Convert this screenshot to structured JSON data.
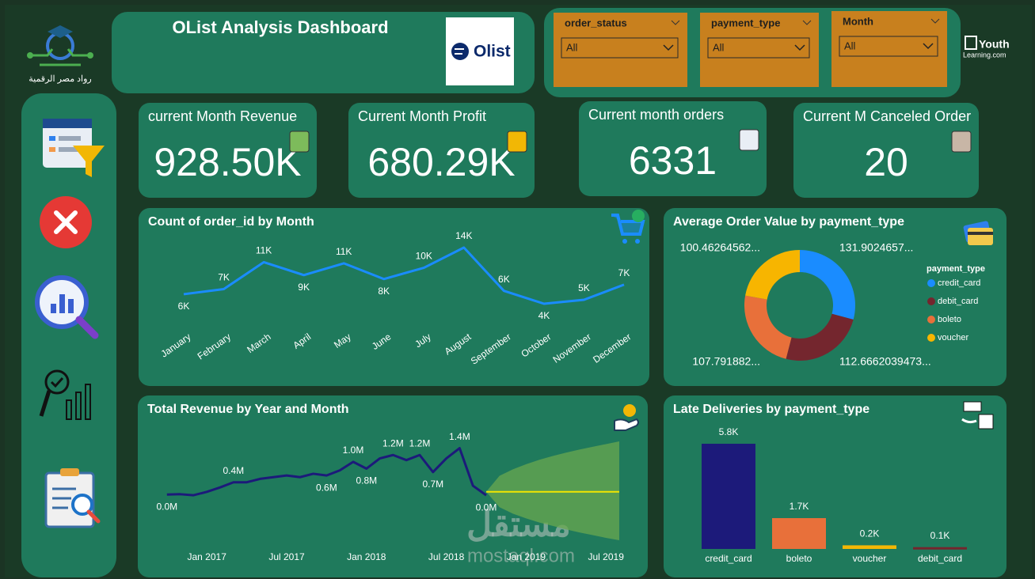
{
  "header": {
    "title": "OList Analysis Dashboard",
    "brand": "Olist",
    "left_logo_caption": "رواد مصر الرقمية",
    "right_logo": [
      "Youth",
      "Learning.com"
    ]
  },
  "filters": [
    {
      "label": "order_status",
      "value": "All"
    },
    {
      "label": "payment_type",
      "value": "All"
    },
    {
      "label": "Month",
      "value": "All"
    }
  ],
  "kpis": [
    {
      "label": "current Month Revenue",
      "value": "928.50K"
    },
    {
      "label": "Current Month Profit",
      "value": "680.29K"
    },
    {
      "label": "Current month orders",
      "value": "6331"
    },
    {
      "label": "Current M Canceled Order",
      "value": "20"
    }
  ],
  "watermark": [
    "مستقل",
    "mostaql.com"
  ],
  "chart_data": [
    {
      "type": "line",
      "title": "Count of order_id by Month",
      "categories": [
        "January",
        "February",
        "March",
        "April",
        "May",
        "June",
        "July",
        "August",
        "September",
        "October",
        "November",
        "December"
      ],
      "values": [
        5700,
        6600,
        11400,
        9100,
        11200,
        8400,
        10400,
        14000,
        6300,
        4000,
        4700,
        7400
      ],
      "value_labels": [
        "6K",
        "7K",
        "11K",
        "9K",
        "11K",
        "8K",
        "10K",
        "14K",
        "6K",
        "4K",
        "5K",
        "7K"
      ],
      "color": "#1a8cff"
    },
    {
      "type": "pie",
      "title": "Average Order Value by payment_type",
      "donut": true,
      "categories": [
        "credit_card",
        "debit_card",
        "boleto",
        "voucher"
      ],
      "values": [
        131.9024657,
        112.6662039473,
        107.791882,
        100.46264562
      ],
      "value_labels": [
        "131.9024657...",
        "112.6662039473...",
        "107.791882...",
        "100.46264562..."
      ],
      "colors": [
        "#1a8cff",
        "#74262e",
        "#e8703a",
        "#f7b500"
      ],
      "legend_title": "payment_type",
      "legend": "right"
    },
    {
      "type": "line",
      "title": "Total Revenue by Year and Month",
      "x": [
        "2016-10",
        "2016-11",
        "2016-12",
        "2017-01",
        "2017-02",
        "2017-03",
        "2017-04",
        "2017-05",
        "2017-06",
        "2017-07",
        "2017-08",
        "2017-09",
        "2017-10",
        "2017-11",
        "2017-12",
        "2018-01",
        "2018-02",
        "2018-03",
        "2018-04",
        "2018-05",
        "2018-06",
        "2018-07",
        "2018-08",
        "2018-09",
        "2018-10"
      ],
      "values": [
        0.04,
        0.05,
        0.02,
        0.12,
        0.25,
        0.4,
        0.4,
        0.5,
        0.55,
        0.6,
        0.55,
        0.65,
        0.6,
        0.75,
        1.0,
        0.8,
        1.1,
        1.2,
        1.05,
        1.2,
        0.7,
        1.1,
        1.4,
        0.3,
        0.02
      ],
      "value_labels": [
        "0.0M",
        null,
        null,
        null,
        null,
        "0.4M",
        null,
        null,
        null,
        null,
        null,
        null,
        "0.6M",
        null,
        "1.0M",
        "0.8M",
        null,
        "1.2M",
        null,
        "1.2M",
        "0.7M",
        null,
        "1.4M",
        null,
        "0.0M"
      ],
      "color": "#1c1a7a",
      "xlim": [
        "2016-09",
        "2019-08"
      ],
      "xticks": [
        {
          "value": "2017-01",
          "label": "Jan 2017"
        },
        {
          "value": "2017-07",
          "label": "Jul 2017"
        },
        {
          "value": "2018-01",
          "label": "Jan 2018"
        },
        {
          "value": "2018-07",
          "label": "Jul 2018"
        },
        {
          "value": "2019-01",
          "label": "Jan 2019"
        },
        {
          "value": "2019-07",
          "label": "Jul 2019"
        }
      ],
      "forecast": {
        "x": [
          "2018-10",
          "2018-11",
          "2018-12",
          "2019-01",
          "2019-02",
          "2019-03",
          "2019-04",
          "2019-05",
          "2019-06",
          "2019-07",
          "2019-08"
        ],
        "values": [
          0.12,
          0.12,
          0.12,
          0.12,
          0.12,
          0.12,
          0.12,
          0.12,
          0.12,
          0.12,
          0.12
        ],
        "upper": [
          0.12,
          0.59,
          0.78,
          0.93,
          1.06,
          1.17,
          1.27,
          1.36,
          1.44,
          1.52,
          1.6
        ],
        "lower": [
          0.12,
          -0.33,
          -0.52,
          -0.66,
          -0.78,
          -0.88,
          -0.98,
          -1.07,
          -1.15,
          -1.23,
          -1.3
        ],
        "color": "#f2e600",
        "band_color": "#6aa84f"
      }
    },
    {
      "type": "bar",
      "title": "Late Deliveries by payment_type",
      "categories": [
        "credit_card",
        "boleto",
        "voucher",
        "debit_card"
      ],
      "values": [
        5800,
        1700,
        200,
        100
      ],
      "value_labels": [
        "5.8K",
        "1.7K",
        "0.2K",
        "0.1K"
      ],
      "colors": [
        "#1c1a7a",
        "#e8703a",
        "#f2b705",
        "#74262e"
      ]
    }
  ]
}
